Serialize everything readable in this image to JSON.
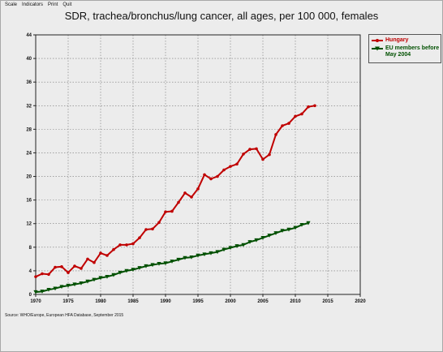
{
  "menu": [
    "Scale",
    "Indicators",
    "Print",
    "Quit"
  ],
  "source": "Source: WHO/Europe, European HFA Database, September 2015",
  "chart_data": {
    "type": "line",
    "title": "SDR, trachea/bronchus/lung cancer, all ages, per 100 000, females",
    "xlabel": "",
    "ylabel": "",
    "xlim": [
      1970,
      2020
    ],
    "ylim": [
      0,
      44
    ],
    "x_ticks": [
      1970,
      1975,
      1980,
      1985,
      1990,
      1995,
      2000,
      2005,
      2010,
      2015,
      2020
    ],
    "y_ticks": [
      0,
      4,
      8,
      12,
      16,
      20,
      24,
      28,
      32,
      36,
      40,
      44
    ],
    "grid": true,
    "legend_position": "top-right",
    "series": [
      {
        "name": "Hungary",
        "color": "#c00000",
        "marker": "circle",
        "x": [
          1970,
          1971,
          1972,
          1973,
          1974,
          1975,
          1976,
          1977,
          1978,
          1979,
          1980,
          1981,
          1982,
          1983,
          1984,
          1985,
          1986,
          1987,
          1988,
          1989,
          1990,
          1991,
          1992,
          1993,
          1994,
          1995,
          1996,
          1997,
          1998,
          1999,
          2000,
          2001,
          2002,
          2003,
          2004,
          2005,
          2006,
          2007,
          2008,
          2009,
          2010,
          2011,
          2012,
          2013
        ],
        "values": [
          3.0,
          3.5,
          3.4,
          4.6,
          4.7,
          3.7,
          4.8,
          4.4,
          6.0,
          5.4,
          7.0,
          6.6,
          7.6,
          8.4,
          8.4,
          8.6,
          9.6,
          11.0,
          11.1,
          12.2,
          14.0,
          14.1,
          15.6,
          17.2,
          16.5,
          17.9,
          20.3,
          19.6,
          20.0,
          21.1,
          21.7,
          22.1,
          23.8,
          24.6,
          24.7,
          22.9,
          23.7,
          27.1,
          28.6,
          29.0,
          30.2,
          30.6,
          31.8,
          32.0
        ]
      },
      {
        "name": "EU members before May 2004",
        "color": "#005000",
        "marker": "triangle-down",
        "x": [
          1970,
          1971,
          1972,
          1973,
          1974,
          1975,
          1976,
          1977,
          1978,
          1979,
          1980,
          1981,
          1982,
          1983,
          1984,
          1985,
          1986,
          1987,
          1988,
          1989,
          1990,
          1991,
          1992,
          1993,
          1994,
          1995,
          1996,
          1997,
          1998,
          1999,
          2000,
          2001,
          2002,
          2003,
          2004,
          2005,
          2006,
          2007,
          2008,
          2009,
          2010,
          2011,
          2012
        ],
        "values": [
          0.4,
          0.5,
          0.8,
          1.0,
          1.3,
          1.5,
          1.7,
          1.9,
          2.2,
          2.5,
          2.8,
          3.0,
          3.3,
          3.7,
          4.0,
          4.2,
          4.5,
          4.8,
          5.0,
          5.2,
          5.3,
          5.6,
          5.9,
          6.2,
          6.3,
          6.6,
          6.8,
          7.0,
          7.2,
          7.6,
          7.9,
          8.2,
          8.4,
          8.9,
          9.2,
          9.6,
          10.0,
          10.4,
          10.8,
          11.0,
          11.3,
          11.8,
          12.1
        ]
      }
    ]
  }
}
